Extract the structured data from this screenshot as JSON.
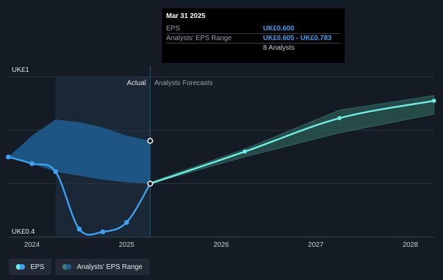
{
  "tooltip": {
    "date": "Mar 31 2025",
    "rows": [
      {
        "key": "EPS",
        "value": "UK£0.600"
      },
      {
        "key": "Analysts' EPS Range",
        "value": "UK£0.605 - UK£0.783"
      },
      {
        "key": "",
        "value": "8 Analysts"
      }
    ]
  },
  "sections": {
    "actual": "Actual",
    "forecast": "Analysts Forecasts"
  },
  "legend": {
    "eps": "EPS",
    "range": "Analysts' EPS Range"
  },
  "colors": {
    "eps": "#3ea2f2",
    "forecast": "#6ff0e6",
    "actual_band": "#1e5f93",
    "forecast_band": "#2c5e58"
  },
  "chart_data": {
    "type": "line",
    "y_top_label": "UK£1",
    "y_bottom_label": "UK£0.4",
    "ylim": [
      0.4,
      1.0
    ],
    "x_ticks": [
      "2024",
      "2025",
      "2026",
      "2027",
      "2028"
    ],
    "xlim": [
      2023.75,
      2028.25
    ],
    "actual_divider": 2025.25,
    "series": [
      {
        "name": "EPS",
        "points": [
          {
            "x": 2023.75,
            "y": 0.7
          },
          {
            "x": 2024.0,
            "y": 0.675
          },
          {
            "x": 2024.25,
            "y": 0.645
          },
          {
            "x": 2024.5,
            "y": 0.43
          },
          {
            "x": 2024.75,
            "y": 0.42
          },
          {
            "x": 2025.0,
            "y": 0.455
          },
          {
            "x": 2025.25,
            "y": 0.6
          }
        ]
      },
      {
        "name": "Analysts Forecasts",
        "points": [
          {
            "x": 2025.25,
            "y": 0.6
          },
          {
            "x": 2026.25,
            "y": 0.72
          },
          {
            "x": 2027.25,
            "y": 0.845
          },
          {
            "x": 2028.25,
            "y": 0.91
          }
        ]
      }
    ],
    "actual_range": {
      "x": [
        2023.75,
        2024.0,
        2024.25,
        2024.5,
        2024.75,
        2025.0,
        2025.25
      ],
      "upper": [
        0.7,
        0.78,
        0.84,
        0.83,
        0.81,
        0.78,
        0.76
      ],
      "lower": [
        0.7,
        0.675,
        0.645,
        0.63,
        0.615,
        0.605,
        0.6
      ]
    },
    "forecast_range": {
      "x": [
        2025.25,
        2026.25,
        2027.25,
        2028.25
      ],
      "upper": [
        0.605,
        0.73,
        0.875,
        0.93
      ],
      "lower": [
        0.6,
        0.7,
        0.79,
        0.86
      ]
    }
  }
}
